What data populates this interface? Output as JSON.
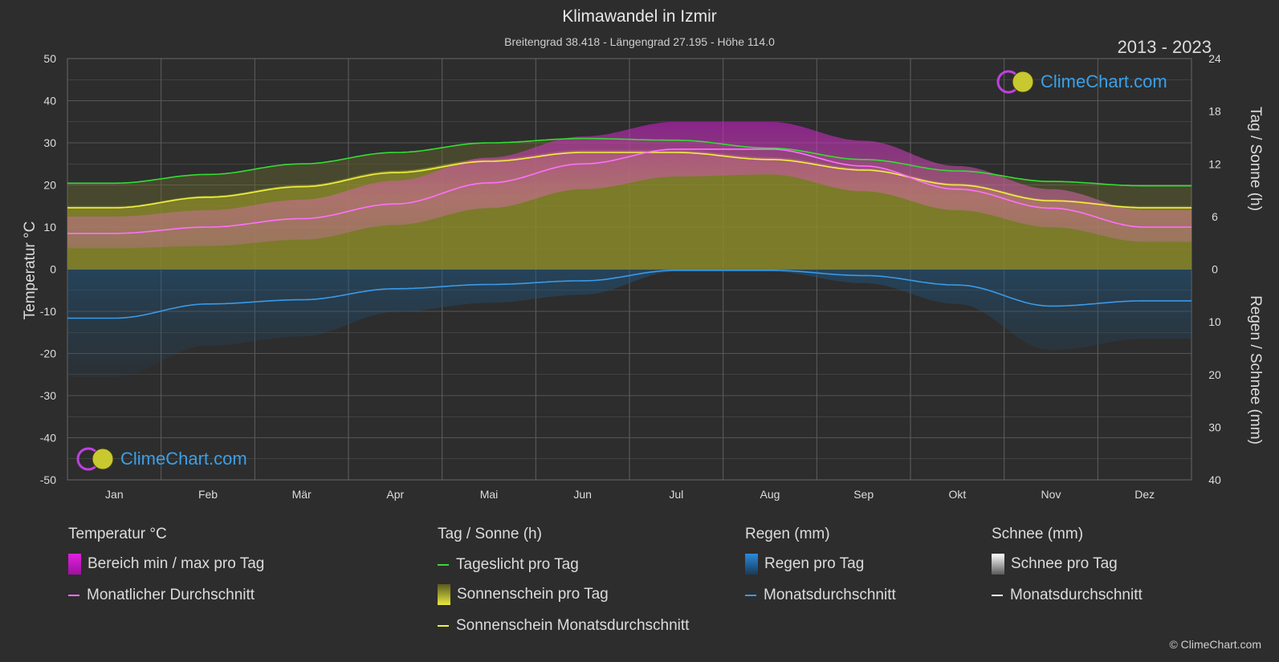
{
  "header": {
    "title": "Klimawandel in Izmir",
    "subtitle": "Breitengrad 38.418 - Längengrad 27.195 - Höhe 114.0",
    "years": "2013 - 2023"
  },
  "axes": {
    "left_title": "Temperatur °C",
    "right_top_title": "Tag / Sonne (h)",
    "right_bottom_title": "Regen / Schnee (mm)",
    "left_ticks": [
      "50",
      "40",
      "30",
      "20",
      "10",
      "0",
      "-10",
      "-20",
      "-30",
      "-40",
      "-50"
    ],
    "right_top_ticks": [
      "24",
      "18",
      "12",
      "6",
      "0"
    ],
    "right_bottom_ticks": [
      "10",
      "20",
      "30",
      "40"
    ]
  },
  "logo": {
    "text": "ClimeChart.com"
  },
  "copyright": "© ClimeChart.com",
  "legend": {
    "temp": {
      "head": "Temperatur °C",
      "range": "Bereich min / max pro Tag",
      "avg": "Monatlicher Durchschnitt"
    },
    "sun": {
      "head": "Tag / Sonne (h)",
      "daylight": "Tageslicht pro Tag",
      "sunshine": "Sonnenschein pro Tag",
      "sun_avg": "Sonnenschein Monatsdurchschnitt"
    },
    "rain": {
      "head": "Regen (mm)",
      "per_day": "Regen pro Tag",
      "avg": "Monatsdurchschnitt"
    },
    "snow": {
      "head": "Schnee (mm)",
      "per_day": "Schnee pro Tag",
      "avg": "Monatsdurchschnitt"
    }
  },
  "colors": {
    "background": "#2d2d2d",
    "grid": "#555555",
    "temp_range": "#d020d0",
    "temp_avg": "#ff70ff",
    "daylight": "#33dd33",
    "sunshine_fill": "#8a8a2a",
    "sun_avg": "#f0f040",
    "rain": "#2a7ab8",
    "rain_avg": "#3a9ae8",
    "snow": "#ffffff"
  },
  "chart_data": {
    "type": "line",
    "categories": [
      "Jan",
      "Feb",
      "Mär",
      "Apr",
      "Mai",
      "Jun",
      "Jul",
      "Aug",
      "Sep",
      "Okt",
      "Nov",
      "Dez"
    ],
    "temp_axis": {
      "ylim": [
        -50,
        50
      ],
      "unit": "°C"
    },
    "sun_axis": {
      "ylim": [
        0,
        24
      ],
      "unit": "h"
    },
    "rain_axis": {
      "ylim": [
        0,
        40
      ],
      "unit": "mm",
      "direction": "down"
    },
    "series": [
      {
        "name": "Monatlicher Durchschnitt",
        "axis": "temp",
        "values": [
          8.5,
          10,
          12,
          15.5,
          20.5,
          25,
          28.5,
          28.5,
          24.5,
          19,
          14.5,
          10
        ]
      },
      {
        "name": "Bereich min / max pro Tag (min)",
        "axis": "temp",
        "values": [
          5,
          5.5,
          7,
          10.5,
          14.5,
          19,
          22,
          22.5,
          18.5,
          14,
          10,
          6.5
        ]
      },
      {
        "name": "Bereich min / max pro Tag (max)",
        "axis": "temp",
        "values": [
          12.5,
          14,
          16.5,
          21,
          26.5,
          31.5,
          35,
          35,
          30.5,
          24.5,
          19,
          14
        ]
      },
      {
        "name": "Tageslicht pro Tag",
        "axis": "sun",
        "values": [
          9.8,
          10.8,
          12,
          13.3,
          14.4,
          14.9,
          14.7,
          13.8,
          12.5,
          11.2,
          10,
          9.5
        ]
      },
      {
        "name": "Sonnenschein Monatsdurchschnitt",
        "axis": "sun",
        "values": [
          7,
          8.2,
          9.4,
          11,
          12.3,
          13.3,
          13.3,
          12.5,
          11.3,
          9.6,
          7.8,
          7
        ]
      },
      {
        "name": "Regen Monatsdurchschnitt",
        "axis": "rain",
        "values": [
          9.3,
          6.6,
          5.8,
          3.7,
          2.9,
          2.2,
          0.2,
          0.2,
          1.2,
          3,
          7,
          6
        ]
      },
      {
        "name": "Schnee Monatsdurchschnitt",
        "axis": "rain",
        "values": [
          0,
          0,
          0,
          0,
          0,
          0,
          0,
          0,
          0,
          0,
          0,
          0
        ]
      }
    ]
  }
}
